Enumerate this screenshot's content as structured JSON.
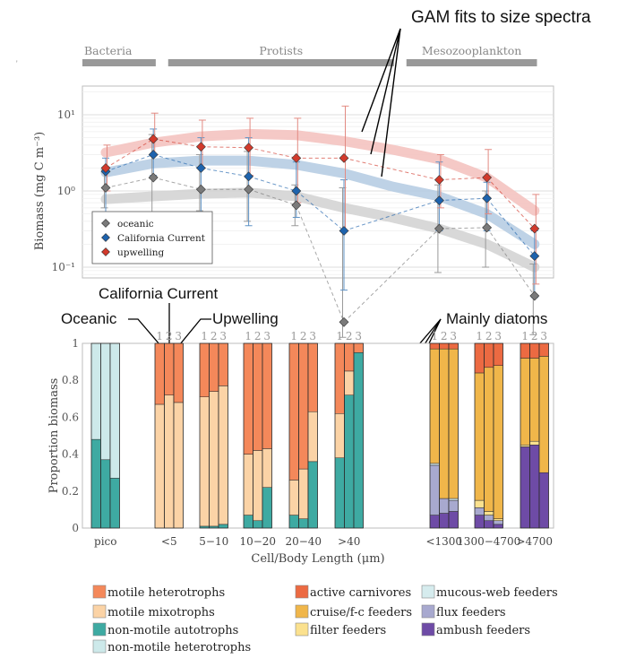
{
  "annotations": {
    "gam": "GAM fits to size spectra",
    "ca_current": "California Current",
    "oceanic": "Oceanic",
    "upwelling": "Upwelling",
    "diatoms": "Mainly diatoms"
  },
  "groups": [
    {
      "label": "Bacteria",
      "x0": 0.0,
      "x1": 0.9
    },
    {
      "label": "Protists",
      "x0": 1.8,
      "x1": 5.9
    },
    {
      "label": "Mesozooplankton",
      "x0": 6.8,
      "x1": 8.9
    }
  ],
  "colors": {
    "oceanic": "#777777",
    "california": "#1a5fa8",
    "upwelling": "#d03028",
    "motile_heterotrophs": "#f4885a",
    "motile_mixotrophs": "#fbd3a6",
    "nonmotile_autotrophs": "#3eaaa2",
    "nonmotile_heterotrophs": "#cde9ea",
    "active_carnivores": "#ec6a42",
    "cruise_fc_feeders": "#f0b64a",
    "filter_feeders": "#fbe18e",
    "mucous_web_feeders": "#d6ecee",
    "flux_feeders": "#a8a9cf",
    "ambush_feeders": "#6e4ba6"
  },
  "chart_data": [
    {
      "type": "line",
      "ylabel": "Biomass (mg C m⁻³)",
      "yscale": "log",
      "ylim": [
        0.012,
        30
      ],
      "yticks": [
        {
          "v": 10,
          "label": "10¹"
        },
        {
          "v": 1,
          "label": "10⁰"
        },
        {
          "v": 0.1,
          "label": "10⁻¹"
        }
      ],
      "x": [
        0,
        1,
        2,
        3,
        4,
        5,
        6,
        7,
        8,
        9
      ],
      "legend_position": "bottom-left",
      "series": [
        {
          "name": "oceanic",
          "key": "oceanic",
          "values": [
            1.1,
            1.5,
            1.05,
            1.05,
            0.65,
            0.019,
            null,
            0.32,
            0.33,
            0.042
          ],
          "err_low": [
            0.6,
            0.35,
            0.55,
            0.4,
            0.35,
            0.012,
            null,
            0.085,
            0.1,
            0.013
          ],
          "err_high": [
            1.9,
            5.5,
            3.0,
            3.3,
            1.2,
            1.1,
            null,
            1.2,
            1.0,
            0.11
          ],
          "gam_x": [
            0,
            1,
            2,
            3,
            4,
            5,
            6,
            7,
            8,
            9
          ],
          "gam": [
            0.78,
            0.85,
            0.92,
            0.95,
            0.85,
            0.6,
            0.45,
            0.32,
            0.2,
            0.1
          ]
        },
        {
          "name": "California Current",
          "key": "california",
          "values": [
            1.8,
            3.0,
            2.0,
            1.55,
            1.0,
            0.3,
            null,
            0.75,
            0.8,
            0.14
          ],
          "err_low": [
            0.35,
            1.6,
            0.5,
            0.35,
            0.45,
            0.05,
            null,
            0.3,
            0.3,
            0.04
          ],
          "err_high": [
            2.7,
            6.5,
            5.0,
            5.0,
            2.4,
            1.4,
            null,
            2.4,
            1.3,
            0.3
          ],
          "gam_x": [
            0,
            1,
            2,
            3,
            4,
            5,
            6,
            7,
            8,
            9
          ],
          "gam": [
            1.75,
            2.3,
            2.5,
            2.5,
            2.2,
            1.7,
            1.15,
            0.85,
            0.5,
            0.2
          ]
        },
        {
          "name": "upwelling",
          "key": "upwelling",
          "values": [
            2.0,
            4.8,
            3.8,
            3.7,
            2.7,
            2.7,
            null,
            1.4,
            1.5,
            0.32
          ],
          "err_low": [
            1.0,
            3.0,
            2.0,
            1.6,
            0.7,
            0.3,
            null,
            0.6,
            0.5,
            0.06
          ],
          "err_high": [
            4.0,
            10.5,
            8.5,
            9.0,
            9.0,
            13.0,
            null,
            3.0,
            3.5,
            0.9
          ],
          "gam_x": [
            0,
            1,
            2,
            3,
            4,
            5,
            6,
            7,
            8,
            9
          ],
          "gam": [
            3.2,
            4.3,
            5.2,
            5.6,
            5.4,
            4.5,
            3.5,
            2.6,
            1.5,
            0.55
          ]
        }
      ]
    },
    {
      "type": "bar",
      "stacked": true,
      "xlabel": "Cell/Body Length (μm)",
      "ylabel": "Proportion biomass",
      "ylim": [
        0,
        1
      ],
      "yticks": [
        "0",
        "0.2",
        "0.4",
        "0.6",
        "0.8",
        "1"
      ],
      "station_labels": [
        "1",
        "2",
        "3"
      ],
      "categories": [
        {
          "label": "pico",
          "bars": [
            [
              {
                "key": "nonmotile_autotrophs",
                "v": 0.48
              },
              {
                "key": "nonmotile_heterotrophs",
                "v": 0.52
              }
            ],
            [
              {
                "key": "nonmotile_autotrophs",
                "v": 0.37
              },
              {
                "key": "nonmotile_heterotrophs",
                "v": 0.63
              }
            ],
            [
              {
                "key": "nonmotile_autotrophs",
                "v": 0.27
              },
              {
                "key": "nonmotile_heterotrophs",
                "v": 0.73
              }
            ]
          ]
        },
        {
          "label": "<5",
          "bars": [
            [
              {
                "key": "nonmotile_autotrophs",
                "v": 0.0
              },
              {
                "key": "motile_mixotrophs",
                "v": 0.67
              },
              {
                "key": "motile_heterotrophs",
                "v": 0.33
              }
            ],
            [
              {
                "key": "nonmotile_autotrophs",
                "v": 0.0
              },
              {
                "key": "motile_mixotrophs",
                "v": 0.72
              },
              {
                "key": "motile_heterotrophs",
                "v": 0.28
              }
            ],
            [
              {
                "key": "nonmotile_autotrophs",
                "v": 0.0
              },
              {
                "key": "motile_mixotrophs",
                "v": 0.68
              },
              {
                "key": "motile_heterotrophs",
                "v": 0.32
              }
            ]
          ]
        },
        {
          "label": "5−10",
          "bars": [
            [
              {
                "key": "nonmotile_autotrophs",
                "v": 0.01
              },
              {
                "key": "motile_mixotrophs",
                "v": 0.7
              },
              {
                "key": "motile_heterotrophs",
                "v": 0.29
              }
            ],
            [
              {
                "key": "nonmotile_autotrophs",
                "v": 0.01
              },
              {
                "key": "motile_mixotrophs",
                "v": 0.73
              },
              {
                "key": "motile_heterotrophs",
                "v": 0.26
              }
            ],
            [
              {
                "key": "nonmotile_autotrophs",
                "v": 0.02
              },
              {
                "key": "motile_mixotrophs",
                "v": 0.75
              },
              {
                "key": "motile_heterotrophs",
                "v": 0.23
              }
            ]
          ]
        },
        {
          "label": "10−20",
          "bars": [
            [
              {
                "key": "nonmotile_autotrophs",
                "v": 0.07
              },
              {
                "key": "motile_mixotrophs",
                "v": 0.33
              },
              {
                "key": "motile_heterotrophs",
                "v": 0.6
              }
            ],
            [
              {
                "key": "nonmotile_autotrophs",
                "v": 0.04
              },
              {
                "key": "motile_mixotrophs",
                "v": 0.38
              },
              {
                "key": "motile_heterotrophs",
                "v": 0.58
              }
            ],
            [
              {
                "key": "nonmotile_autotrophs",
                "v": 0.22
              },
              {
                "key": "motile_mixotrophs",
                "v": 0.21
              },
              {
                "key": "motile_heterotrophs",
                "v": 0.57
              }
            ]
          ]
        },
        {
          "label": "20−40",
          "bars": [
            [
              {
                "key": "nonmotile_autotrophs",
                "v": 0.07
              },
              {
                "key": "motile_mixotrophs",
                "v": 0.19
              },
              {
                "key": "motile_heterotrophs",
                "v": 0.74
              }
            ],
            [
              {
                "key": "nonmotile_autotrophs",
                "v": 0.05
              },
              {
                "key": "motile_mixotrophs",
                "v": 0.27
              },
              {
                "key": "motile_heterotrophs",
                "v": 0.68
              }
            ],
            [
              {
                "key": "nonmotile_autotrophs",
                "v": 0.36
              },
              {
                "key": "motile_mixotrophs",
                "v": 0.27
              },
              {
                "key": "motile_heterotrophs",
                "v": 0.37
              }
            ]
          ]
        },
        {
          "label": ">40",
          "bars": [
            [
              {
                "key": "nonmotile_autotrophs",
                "v": 0.38
              },
              {
                "key": "motile_mixotrophs",
                "v": 0.24
              },
              {
                "key": "motile_heterotrophs",
                "v": 0.38
              }
            ],
            [
              {
                "key": "nonmotile_autotrophs",
                "v": 0.72
              },
              {
                "key": "motile_mixotrophs",
                "v": 0.13
              },
              {
                "key": "motile_heterotrophs",
                "v": 0.15
              }
            ],
            [
              {
                "key": "nonmotile_autotrophs",
                "v": 0.95
              },
              {
                "key": "motile_mixotrophs",
                "v": 0.0
              },
              {
                "key": "motile_heterotrophs",
                "v": 0.05
              }
            ]
          ]
        },
        {
          "label": "<1300",
          "gap_before": true,
          "bars": [
            [
              {
                "key": "ambush_feeders",
                "v": 0.07
              },
              {
                "key": "flux_feeders",
                "v": 0.27
              },
              {
                "key": "mucous_web_feeders",
                "v": 0.01
              },
              {
                "key": "filter_feeders",
                "v": 0.0
              },
              {
                "key": "cruise_fc_feeders",
                "v": 0.62
              },
              {
                "key": "active_carnivores",
                "v": 0.03
              }
            ],
            [
              {
                "key": "ambush_feeders",
                "v": 0.08
              },
              {
                "key": "flux_feeders",
                "v": 0.08
              },
              {
                "key": "mucous_web_feeders",
                "v": 0.0
              },
              {
                "key": "filter_feeders",
                "v": 0.0
              },
              {
                "key": "cruise_fc_feeders",
                "v": 0.81
              },
              {
                "key": "active_carnivores",
                "v": 0.03
              }
            ],
            [
              {
                "key": "ambush_feeders",
                "v": 0.09
              },
              {
                "key": "flux_feeders",
                "v": 0.06
              },
              {
                "key": "mucous_web_feeders",
                "v": 0.01
              },
              {
                "key": "filter_feeders",
                "v": 0.0
              },
              {
                "key": "cruise_fc_feeders",
                "v": 0.81
              },
              {
                "key": "active_carnivores",
                "v": 0.03
              }
            ]
          ]
        },
        {
          "label": "1300−4700",
          "bars": [
            [
              {
                "key": "ambush_feeders",
                "v": 0.07
              },
              {
                "key": "flux_feeders",
                "v": 0.04
              },
              {
                "key": "mucous_web_feeders",
                "v": 0.0
              },
              {
                "key": "filter_feeders",
                "v": 0.04
              },
              {
                "key": "cruise_fc_feeders",
                "v": 0.69
              },
              {
                "key": "active_carnivores",
                "v": 0.16
              }
            ],
            [
              {
                "key": "ambush_feeders",
                "v": 0.04
              },
              {
                "key": "flux_feeders",
                "v": 0.03
              },
              {
                "key": "mucous_web_feeders",
                "v": 0.0
              },
              {
                "key": "filter_feeders",
                "v": 0.02
              },
              {
                "key": "cruise_fc_feeders",
                "v": 0.78
              },
              {
                "key": "active_carnivores",
                "v": 0.13
              }
            ],
            [
              {
                "key": "ambush_feeders",
                "v": 0.02
              },
              {
                "key": "flux_feeders",
                "v": 0.02
              },
              {
                "key": "mucous_web_feeders",
                "v": 0.0
              },
              {
                "key": "filter_feeders",
                "v": 0.01
              },
              {
                "key": "cruise_fc_feeders",
                "v": 0.83
              },
              {
                "key": "active_carnivores",
                "v": 0.12
              }
            ]
          ]
        },
        {
          "label": ">4700",
          "bars": [
            [
              {
                "key": "ambush_feeders",
                "v": 0.44
              },
              {
                "key": "flux_feeders",
                "v": 0.0
              },
              {
                "key": "mucous_web_feeders",
                "v": 0.0
              },
              {
                "key": "filter_feeders",
                "v": 0.01
              },
              {
                "key": "cruise_fc_feeders",
                "v": 0.47
              },
              {
                "key": "active_carnivores",
                "v": 0.08
              }
            ],
            [
              {
                "key": "ambush_feeders",
                "v": 0.45
              },
              {
                "key": "flux_feeders",
                "v": 0.0
              },
              {
                "key": "mucous_web_feeders",
                "v": 0.0
              },
              {
                "key": "filter_feeders",
                "v": 0.02
              },
              {
                "key": "cruise_fc_feeders",
                "v": 0.45
              },
              {
                "key": "active_carnivores",
                "v": 0.08
              }
            ],
            [
              {
                "key": "ambush_feeders",
                "v": 0.3
              },
              {
                "key": "flux_feeders",
                "v": 0.0
              },
              {
                "key": "mucous_web_feeders",
                "v": 0.0
              },
              {
                "key": "filter_feeders",
                "v": 0.0
              },
              {
                "key": "cruise_fc_feeders",
                "v": 0.63
              },
              {
                "key": "active_carnivores",
                "v": 0.07
              }
            ]
          ]
        }
      ],
      "legend": [
        {
          "key": "motile_heterotrophs",
          "label": "motile heterotrophs"
        },
        {
          "key": "motile_mixotrophs",
          "label": "motile mixotrophs"
        },
        {
          "key": "nonmotile_autotrophs",
          "label": "non-motile autotrophs"
        },
        {
          "key": "nonmotile_heterotrophs",
          "label": "non-motile heterotrophs"
        },
        {
          "key": "active_carnivores",
          "label": "active carnivores"
        },
        {
          "key": "cruise_fc_feeders",
          "label": "cruise/f-c feeders"
        },
        {
          "key": "filter_feeders",
          "label": "filter feeders"
        },
        {
          "key": "mucous_web_feeders",
          "label": "mucous-web feeders"
        },
        {
          "key": "flux_feeders",
          "label": "flux feeders"
        },
        {
          "key": "ambush_feeders",
          "label": "ambush feeders"
        }
      ]
    }
  ]
}
